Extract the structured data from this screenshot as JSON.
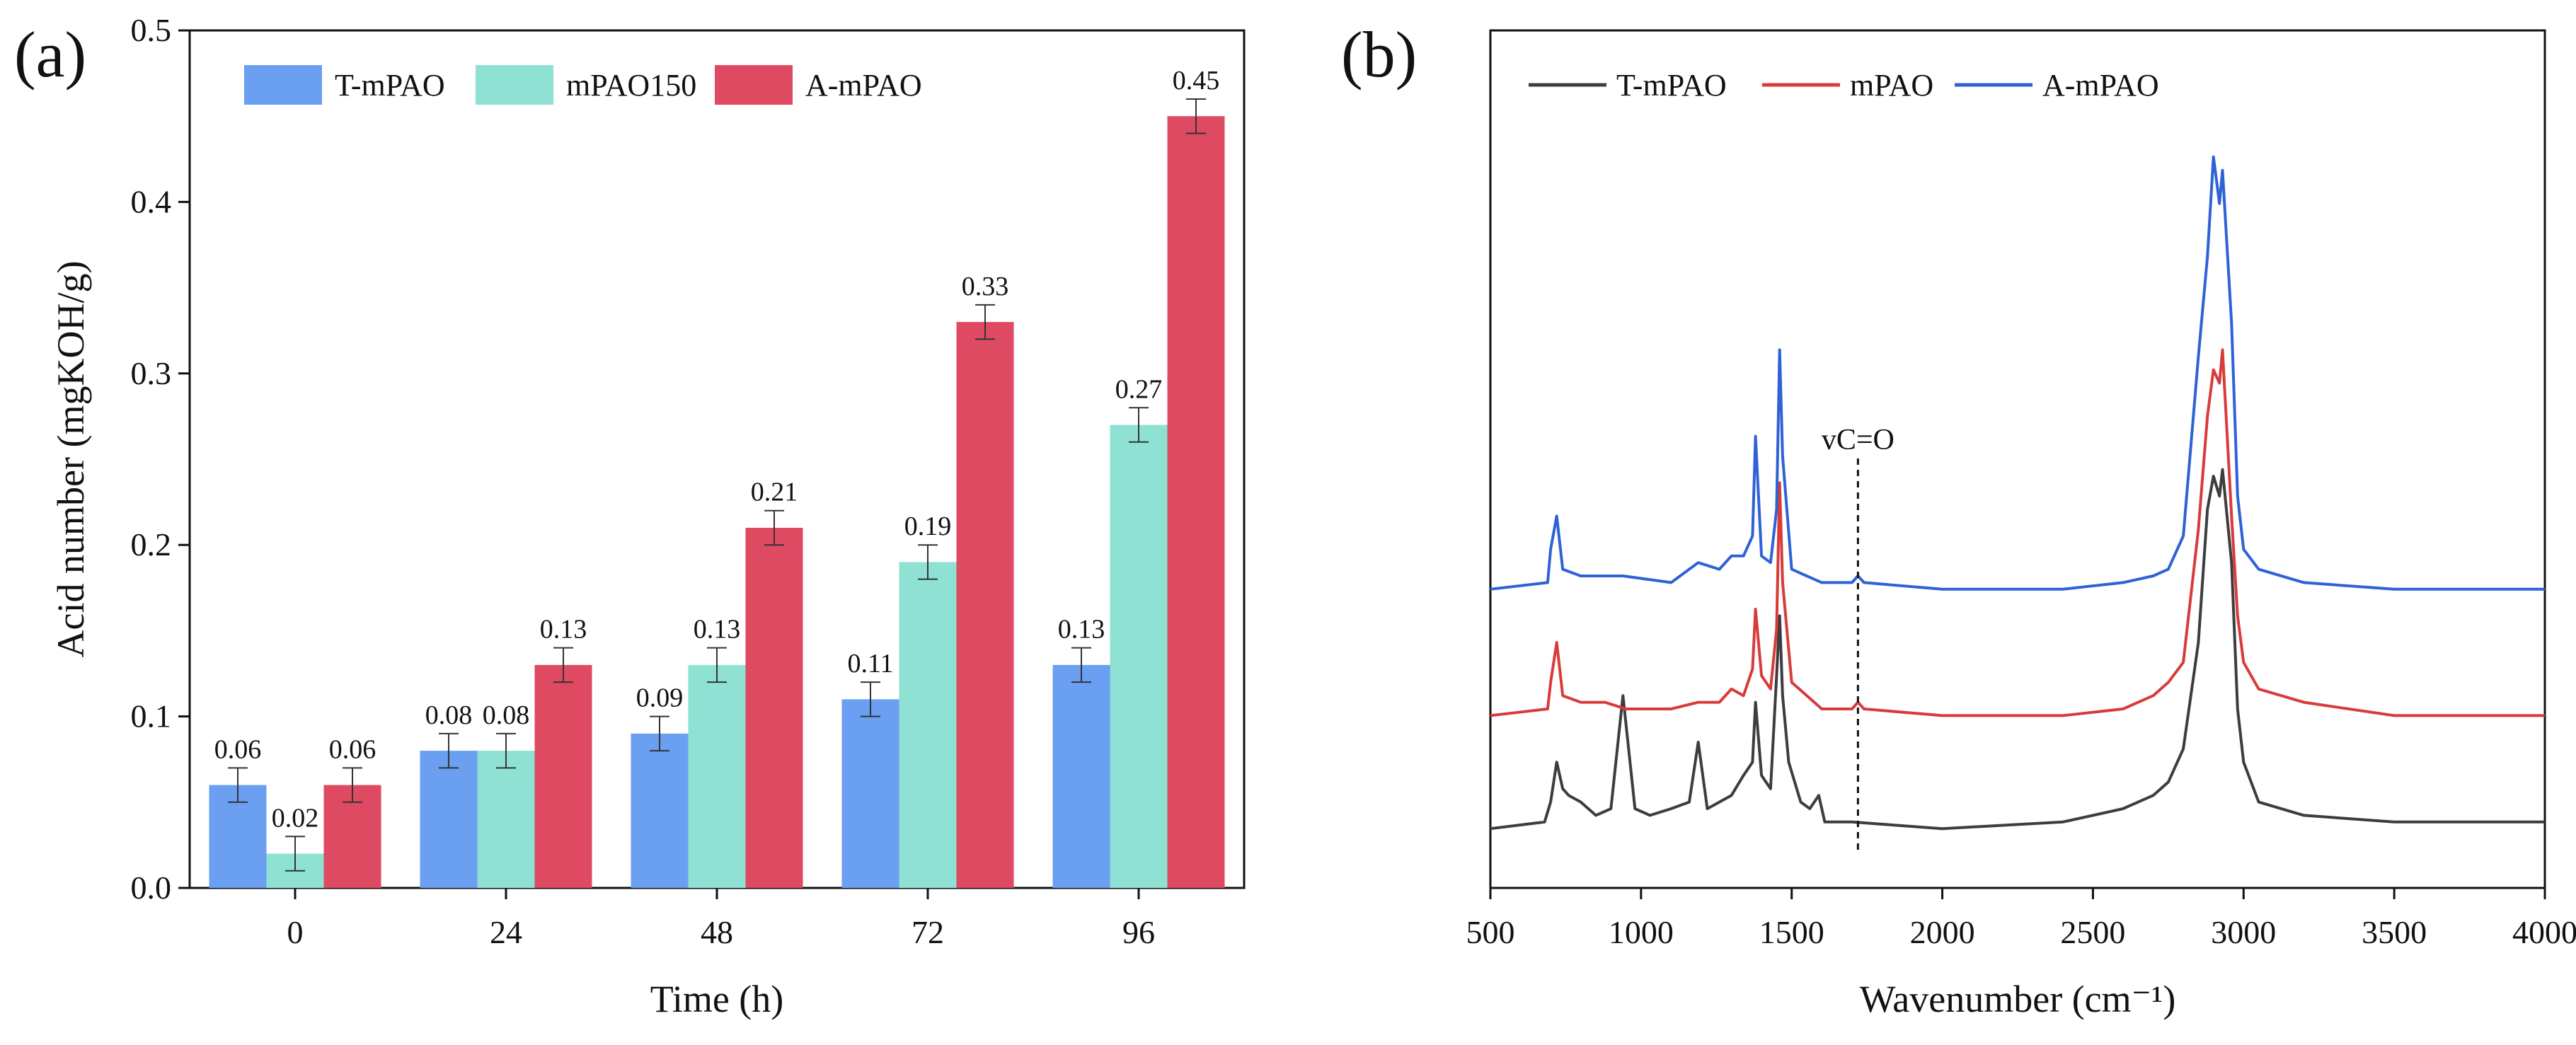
{
  "chart_data": [
    {
      "panel": "(a)",
      "type": "bar",
      "title": "",
      "xlabel": "Time (h)",
      "ylabel": "Acid number (mgKOH/g)",
      "categories": [
        "0",
        "24",
        "48",
        "72",
        "96"
      ],
      "ylim": [
        0,
        0.5
      ],
      "yticks": [
        "0.0",
        "0.1",
        "0.2",
        "0.3",
        "0.4",
        "0.5"
      ],
      "legend_position": "top-left",
      "series": [
        {
          "name": "T-mPAO",
          "color": "#6a9ff2",
          "values": [
            0.06,
            0.08,
            0.09,
            0.11,
            0.13
          ],
          "errors": [
            0.01,
            0.01,
            0.01,
            0.01,
            0.01
          ],
          "labels": [
            "0.06",
            "0.08",
            "0.09",
            "0.11",
            "0.13"
          ]
        },
        {
          "name": "mPAO150",
          "color": "#8fe2d3",
          "values": [
            0.02,
            0.08,
            0.13,
            0.19,
            0.27
          ],
          "errors": [
            0.01,
            0.01,
            0.01,
            0.01,
            0.01
          ],
          "labels": [
            "0.02",
            "0.08",
            "0.13",
            "0.19",
            "0.27"
          ]
        },
        {
          "name": "A-mPAO",
          "color": "#de4a62",
          "values": [
            0.06,
            0.13,
            0.21,
            0.33,
            0.45
          ],
          "errors": [
            0.01,
            0.01,
            0.01,
            0.01,
            0.01
          ],
          "labels": [
            "0.06",
            "0.13",
            "0.21",
            "0.33",
            "0.45"
          ]
        }
      ]
    },
    {
      "panel": "(b)",
      "type": "line",
      "title": "",
      "xlabel": "Wavenumber (cm⁻¹)",
      "ylabel": "",
      "xlim": [
        500,
        4000
      ],
      "xticks": [
        "500",
        "1000",
        "1500",
        "2000",
        "2500",
        "3000",
        "3500",
        "4000"
      ],
      "legend_position": "top-left",
      "annotation": {
        "text": "vC=O",
        "x": 1720
      },
      "series": [
        {
          "name": "T-mPAO",
          "color": "#3d3d3d",
          "offset": 0.0,
          "x": [
            500,
            680,
            700,
            720,
            740,
            760,
            800,
            850,
            900,
            940,
            980,
            1030,
            1100,
            1160,
            1190,
            1220,
            1300,
            1340,
            1370,
            1380,
            1400,
            1430,
            1450,
            1460,
            1470,
            1490,
            1530,
            1560,
            1590,
            1610,
            1700,
            2000,
            2400,
            2600,
            2700,
            2750,
            2800,
            2850,
            2880,
            2900,
            2920,
            2930,
            2960,
            2980,
            3000,
            3050,
            3200,
            3500,
            4000
          ],
          "y": [
            0.02,
            0.03,
            0.06,
            0.12,
            0.08,
            0.07,
            0.06,
            0.04,
            0.05,
            0.22,
            0.05,
            0.04,
            0.05,
            0.06,
            0.15,
            0.05,
            0.07,
            0.1,
            0.12,
            0.21,
            0.1,
            0.08,
            0.25,
            0.34,
            0.22,
            0.12,
            0.06,
            0.05,
            0.07,
            0.03,
            0.03,
            0.02,
            0.03,
            0.05,
            0.07,
            0.09,
            0.14,
            0.3,
            0.5,
            0.55,
            0.52,
            0.56,
            0.42,
            0.2,
            0.12,
            0.06,
            0.04,
            0.03,
            0.03
          ]
        },
        {
          "name": "mPAO",
          "color": "#d93b3b",
          "offset": 0.19,
          "x": [
            500,
            690,
            700,
            720,
            740,
            800,
            880,
            950,
            1100,
            1190,
            1260,
            1300,
            1340,
            1370,
            1380,
            1400,
            1430,
            1450,
            1460,
            1470,
            1500,
            1600,
            1700,
            1720,
            1740,
            2000,
            2400,
            2600,
            2700,
            2750,
            2800,
            2850,
            2880,
            2900,
            2920,
            2930,
            2960,
            2980,
            3000,
            3050,
            3200,
            3500,
            4000
          ],
          "y": [
            0.0,
            0.01,
            0.05,
            0.11,
            0.03,
            0.02,
            0.02,
            0.01,
            0.01,
            0.02,
            0.02,
            0.04,
            0.03,
            0.07,
            0.16,
            0.06,
            0.04,
            0.13,
            0.35,
            0.2,
            0.05,
            0.01,
            0.01,
            0.02,
            0.01,
            0.0,
            0.0,
            0.01,
            0.03,
            0.05,
            0.08,
            0.28,
            0.45,
            0.52,
            0.5,
            0.55,
            0.3,
            0.15,
            0.08,
            0.04,
            0.02,
            0.0,
            0.0
          ]
        },
        {
          "name": "A-mPAO",
          "color": "#2e62d6",
          "offset": 0.38,
          "x": [
            500,
            690,
            700,
            720,
            740,
            800,
            880,
            940,
            1100,
            1190,
            1260,
            1300,
            1340,
            1370,
            1380,
            1400,
            1430,
            1450,
            1460,
            1470,
            1500,
            1600,
            1700,
            1720,
            1740,
            2000,
            2400,
            2600,
            2700,
            2750,
            2800,
            2850,
            2880,
            2900,
            2920,
            2930,
            2960,
            2980,
            3000,
            3050,
            3200,
            3500,
            4000
          ],
          "y": [
            0.0,
            0.01,
            0.06,
            0.11,
            0.03,
            0.02,
            0.02,
            0.02,
            0.01,
            0.04,
            0.03,
            0.05,
            0.05,
            0.08,
            0.23,
            0.05,
            0.04,
            0.12,
            0.36,
            0.2,
            0.03,
            0.01,
            0.01,
            0.02,
            0.01,
            0.0,
            0.0,
            0.01,
            0.02,
            0.03,
            0.08,
            0.35,
            0.5,
            0.65,
            0.58,
            0.63,
            0.4,
            0.14,
            0.06,
            0.03,
            0.01,
            0.0,
            0.0
          ]
        }
      ]
    }
  ]
}
